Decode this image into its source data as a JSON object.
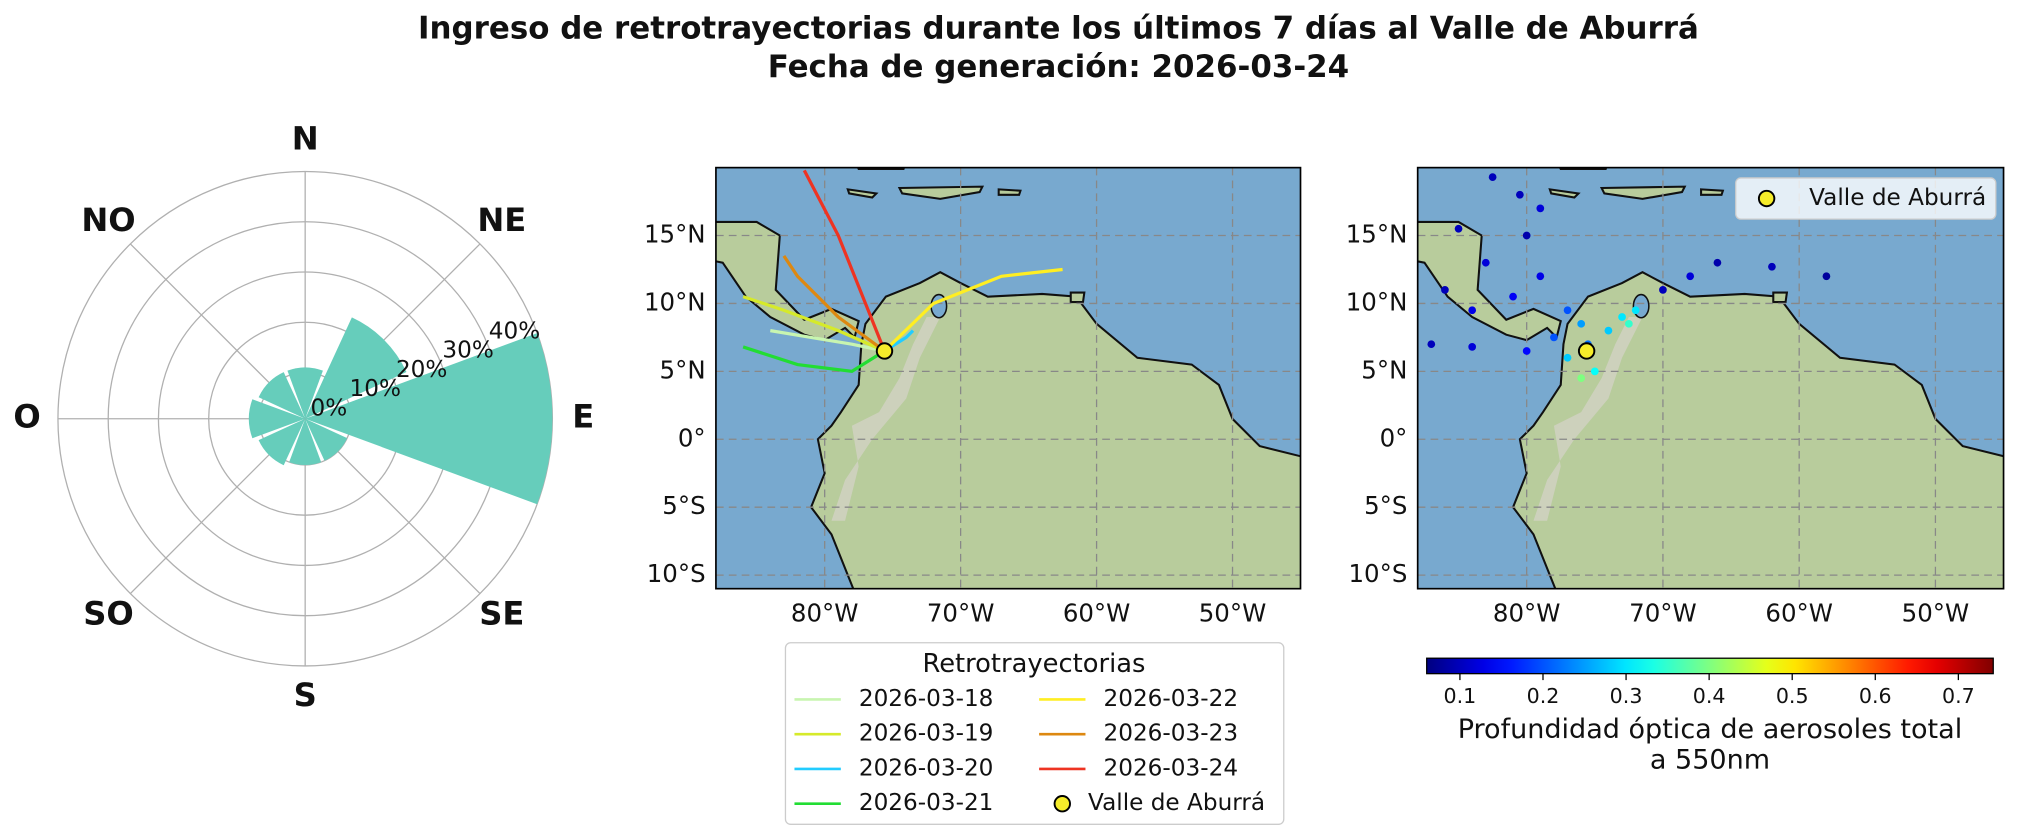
{
  "title": "Ingreso de retrotrayectorias durante los últimos 7 días al Valle de Aburrá",
  "subtitle": "Fecha de generación: 2026-03-24",
  "chart_data": [
    {
      "type": "polar_bar",
      "directions": [
        "N",
        "NE",
        "E",
        "SE",
        "S",
        "SO",
        "O",
        "NO"
      ],
      "values": [
        1,
        13,
        40,
        0,
        0,
        1,
        2,
        1
      ],
      "color": "#66cdbb",
      "rlim": [
        -9.2,
        40
      ],
      "rticks": [
        {
          "value": 0,
          "label": "0%"
        },
        {
          "value": 10,
          "label": "10%"
        },
        {
          "value": 20,
          "label": "20%"
        },
        {
          "value": 30,
          "label": "30%"
        },
        {
          "value": 40,
          "label": "40%"
        }
      ],
      "grid": true
    },
    {
      "type": "map_lines",
      "xlim": [
        -88,
        -45
      ],
      "ylim": [
        -11,
        20
      ],
      "xticks": [
        {
          "value": -80,
          "label": "80°W"
        },
        {
          "value": -70,
          "label": "70°W"
        },
        {
          "value": -60,
          "label": "60°W"
        },
        {
          "value": -50,
          "label": "50°W"
        }
      ],
      "yticks": [
        {
          "value": 15,
          "label": "15°N"
        },
        {
          "value": 10,
          "label": "10°N"
        },
        {
          "value": 5,
          "label": "5°N"
        },
        {
          "value": 0,
          "label": "0°"
        },
        {
          "value": -5,
          "label": "5°S"
        },
        {
          "value": -10,
          "label": "10°S"
        }
      ],
      "grid": true,
      "legend_title": "Retrotrayectorias",
      "series": [
        {
          "name": "2026-03-18",
          "color": "#c8f5b0",
          "x": [
            -75.6,
            -78,
            -81,
            -84
          ],
          "values": [
            6.5,
            7,
            7.5,
            8
          ]
        },
        {
          "name": "2026-03-19",
          "color": "#d6ea2a",
          "x": [
            -75.6,
            -79,
            -83,
            -86
          ],
          "values": [
            6.5,
            8,
            9.5,
            10.5
          ]
        },
        {
          "name": "2026-03-20",
          "color": "#22ccff",
          "x": [
            -75.6,
            -74,
            -73.5
          ],
          "values": [
            6.5,
            7.5,
            8
          ]
        },
        {
          "name": "2026-03-21",
          "color": "#22dd33",
          "x": [
            -75.6,
            -78,
            -82,
            -86
          ],
          "values": [
            6.5,
            5,
            5.5,
            6.8
          ]
        },
        {
          "name": "2026-03-22",
          "color": "#ffee22",
          "x": [
            -75.6,
            -72,
            -67,
            -62.5
          ],
          "values": [
            6.5,
            10,
            12,
            12.5
          ]
        },
        {
          "name": "2026-03-23",
          "color": "#dd8811",
          "x": [
            -75.6,
            -79,
            -82,
            -83
          ],
          "values": [
            6.5,
            9,
            12,
            13.5
          ]
        },
        {
          "name": "2026-03-24",
          "color": "#ee3322",
          "x": [
            -75.6,
            -77,
            -79,
            -81.5
          ],
          "values": [
            6.5,
            10,
            15,
            19.8
          ]
        }
      ],
      "site": {
        "name": "Valle de Aburrá",
        "x": -75.6,
        "y": 6.5,
        "color": "#f5ec2a"
      }
    },
    {
      "type": "map_scatter",
      "xlim": [
        -88,
        -45
      ],
      "ylim": [
        -11,
        20
      ],
      "xticks": [
        {
          "value": -80,
          "label": "80°W"
        },
        {
          "value": -70,
          "label": "70°W"
        },
        {
          "value": -60,
          "label": "60°W"
        },
        {
          "value": -50,
          "label": "50°W"
        }
      ],
      "yticks": [
        {
          "value": 15,
          "label": "15°N"
        },
        {
          "value": 10,
          "label": "10°N"
        },
        {
          "value": 5,
          "label": "5°N"
        },
        {
          "value": 0,
          "label": "0°"
        },
        {
          "value": -5,
          "label": "5°S"
        },
        {
          "value": -10,
          "label": "10°S"
        }
      ],
      "grid": true,
      "points": {
        "x": [
          -82.5,
          -80.5,
          -79,
          -80,
          -83,
          -86,
          -87,
          -84,
          -80,
          -78,
          -76,
          -74,
          -73,
          -72.5,
          -75,
          -76,
          -75.5,
          -70,
          -66,
          -62,
          -58,
          -68,
          -81,
          -79,
          -77,
          -72,
          -77,
          -84,
          -85
        ],
        "y": [
          19.3,
          18,
          17,
          15,
          13,
          11,
          7,
          6.8,
          6.5,
          7.5,
          8.5,
          8,
          9,
          8.5,
          5,
          4.5,
          7,
          11,
          13,
          12.7,
          12,
          12,
          10.5,
          12,
          9.5,
          9.5,
          6,
          9.5,
          15.5
        ],
        "values": [
          0.1,
          0.1,
          0.12,
          0.09,
          0.12,
          0.1,
          0.1,
          0.12,
          0.15,
          0.2,
          0.25,
          0.28,
          0.3,
          0.35,
          0.32,
          0.4,
          0.22,
          0.1,
          0.09,
          0.1,
          0.08,
          0.12,
          0.14,
          0.13,
          0.2,
          0.3,
          0.28,
          0.13,
          0.1
        ]
      },
      "colormap": "jet",
      "clim": [
        0.06,
        0.742
      ],
      "cticks": [
        0.1,
        0.2,
        0.3,
        0.4,
        0.5,
        0.6,
        0.7
      ],
      "colorbar_label": [
        "Profundidad óptica de aerosoles total",
        "a 550nm"
      ],
      "legend": "upper right",
      "site": {
        "name": "Valle de Aburrá",
        "x": -75.6,
        "y": 6.5,
        "color": "#f5ec2a"
      }
    }
  ]
}
